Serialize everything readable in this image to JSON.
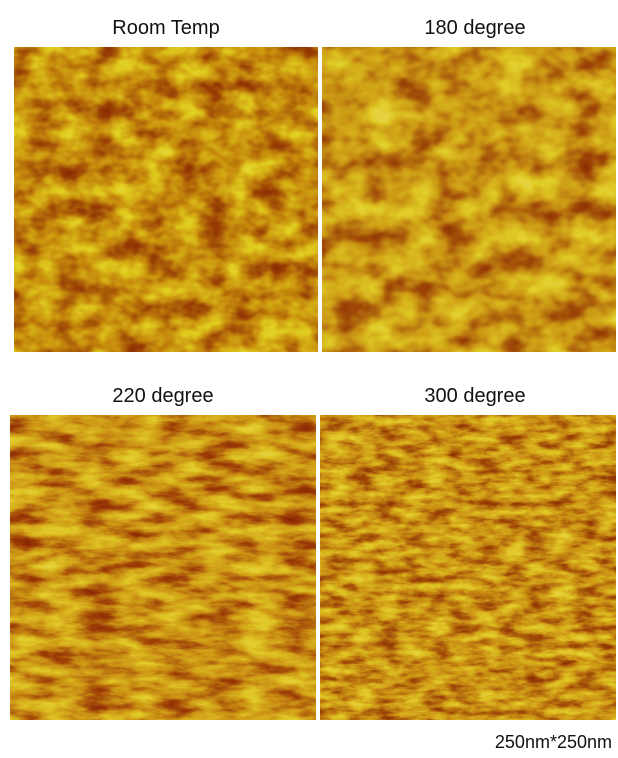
{
  "panels": [
    {
      "label": "Room Temp"
    },
    {
      "label": "180 degree"
    },
    {
      "label": "220 degree"
    },
    {
      "label": "300 degree"
    }
  ],
  "footer": "250nm*250nm"
}
